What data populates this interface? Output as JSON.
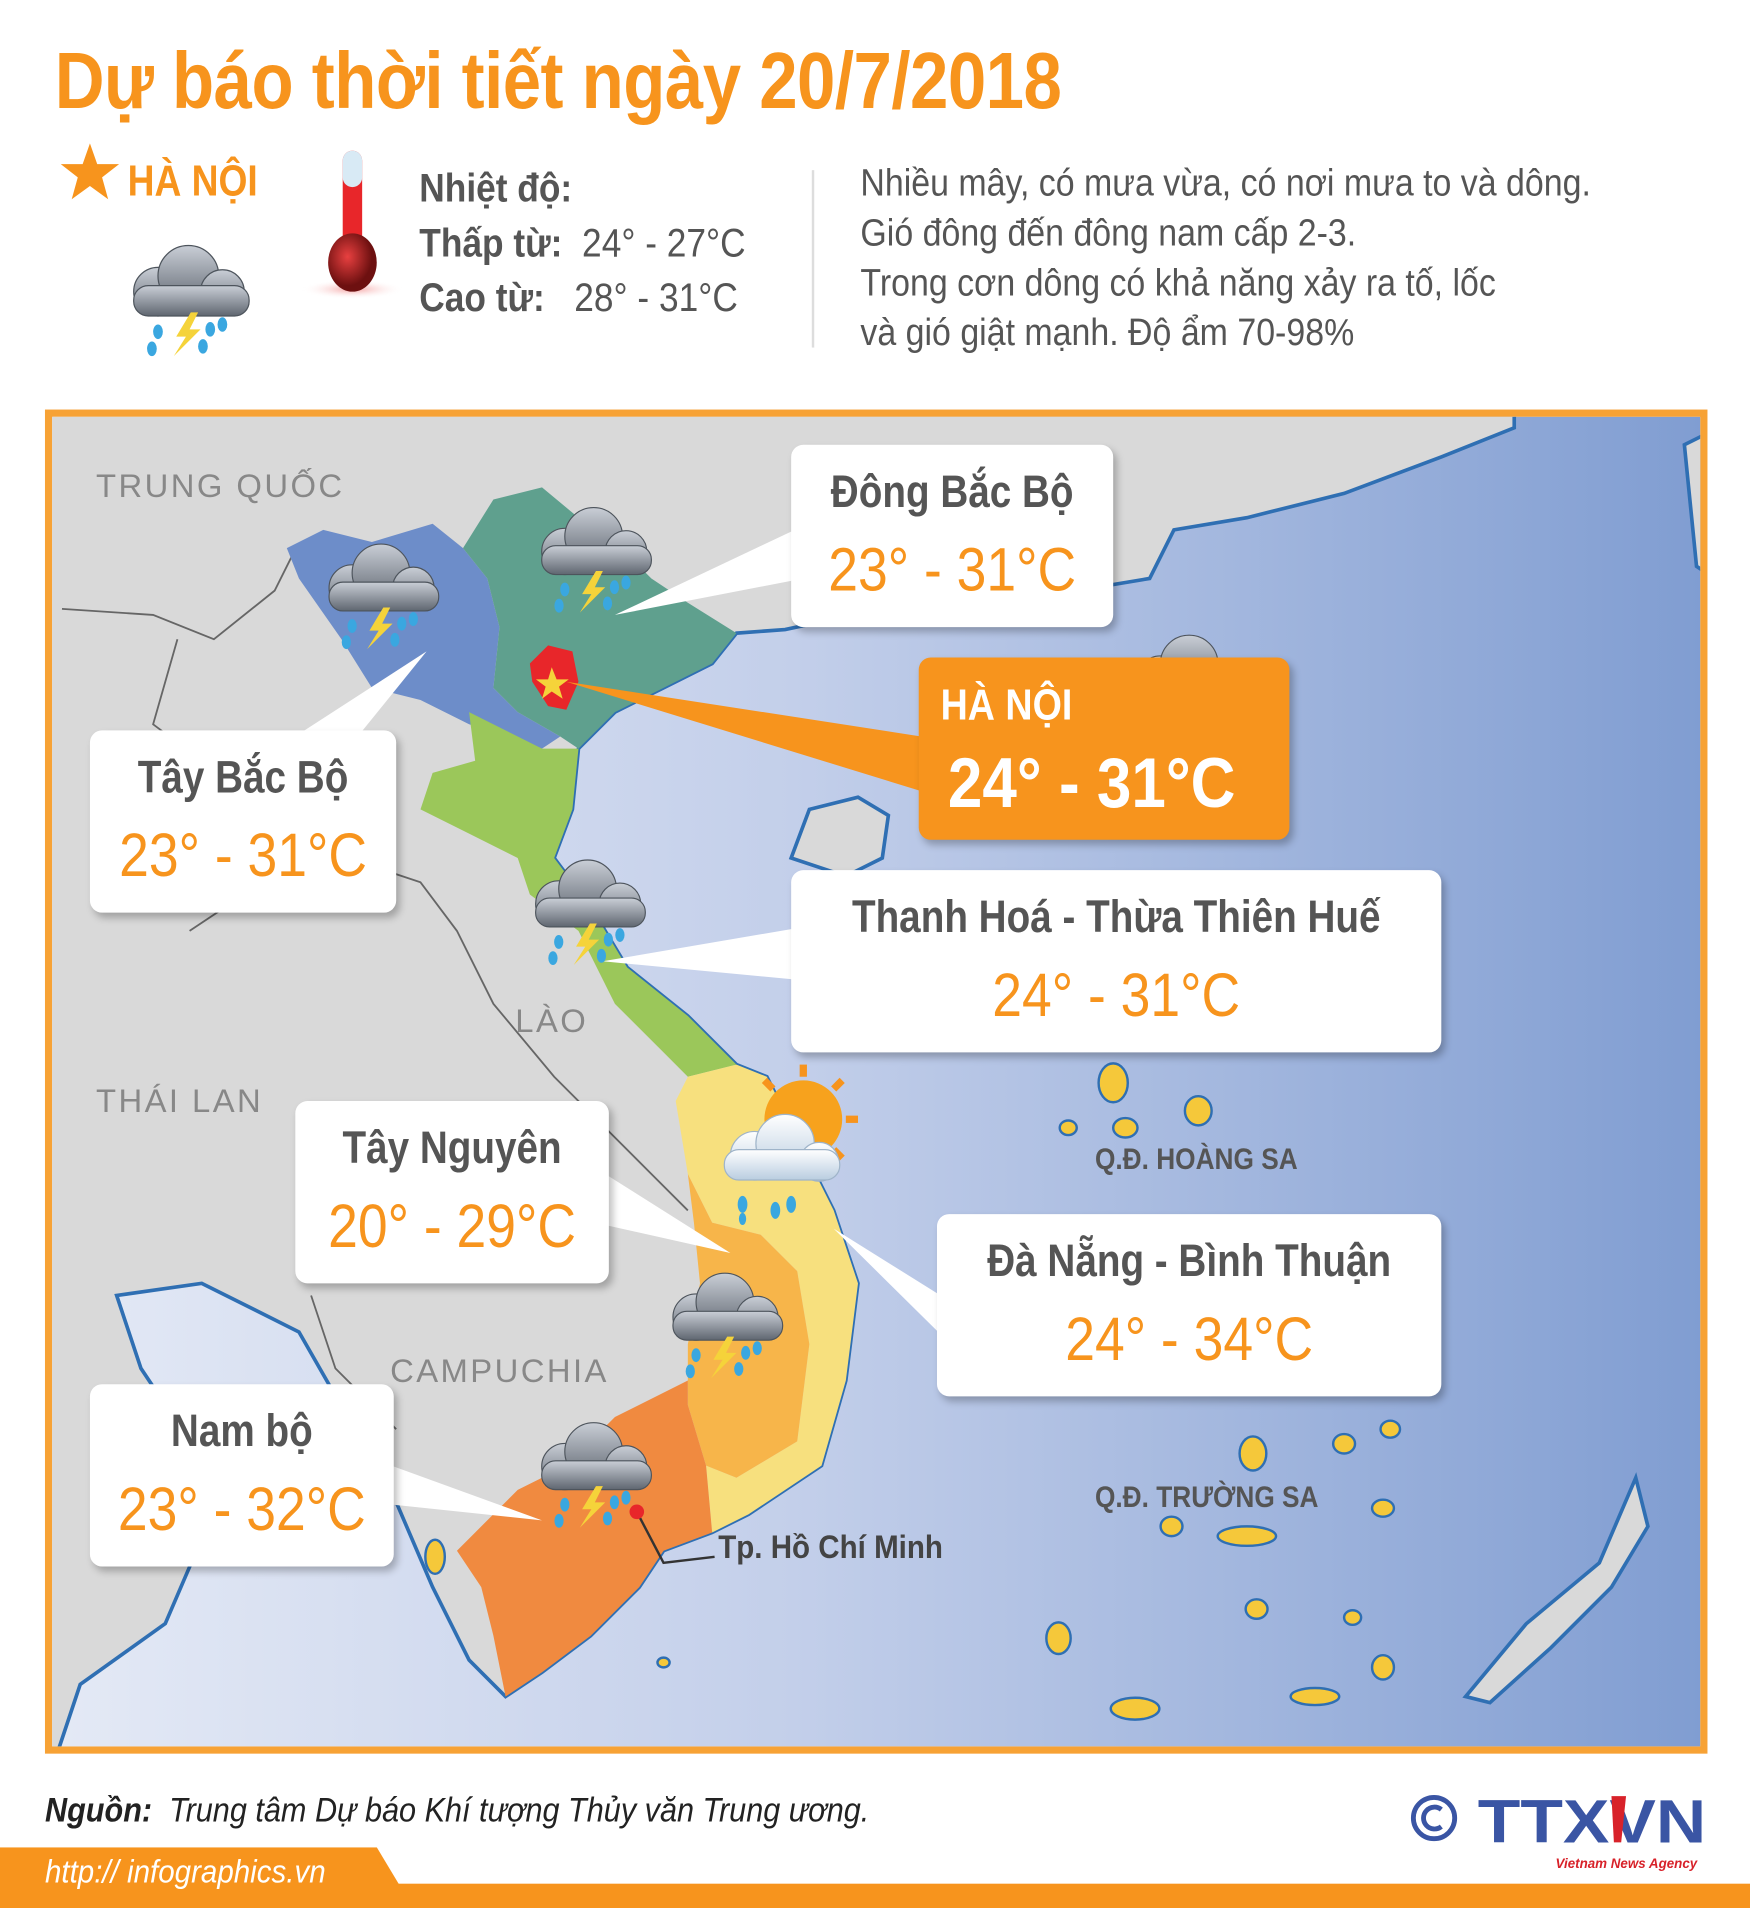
{
  "title": "Dự báo thời tiết ngày 20/7/2018",
  "hanoi_summary": {
    "city": "HÀ NỘI",
    "weather_icon": "thunderstorm-rain-icon",
    "temp_heading": "Nhiệt độ:",
    "low_label": "Thấp từ:",
    "low_value": "24° - 27°C",
    "high_label": "Cao từ:",
    "high_value": "28° - 31°C",
    "description": [
      "Nhiều mây, có mưa vừa, có nơi mưa to và dông.",
      "Gió đông đến đông nam cấp 2-3.",
      "Trong cơn dông có khả năng xảy ra tố, lốc",
      "và gió giật mạnh. Độ ẩm 70-98%"
    ]
  },
  "map": {
    "countries": [
      "TRUNG QUỐC",
      "LÀO",
      "THÁI LAN",
      "CAMPUCHIA"
    ],
    "islands": [
      "Q.Đ. HOÀNG SA",
      "Q.Đ. TRƯỜNG SA"
    ],
    "city_marker": "Tp. Hồ Chí Minh",
    "regions": [
      {
        "name": "Đông Bắc Bộ",
        "temp": "23° - 31°C",
        "color": "#5fa08e",
        "icon": "thunderstorm-rain-icon"
      },
      {
        "name": "HÀ NỘI",
        "temp": "24° - 31°C",
        "color": "#e8262a",
        "icon": "thunderstorm-rain-icon"
      },
      {
        "name": "Tây Bắc Bộ",
        "temp": "23° - 31°C",
        "color": "#6d8dc9",
        "icon": "thunderstorm-rain-icon"
      },
      {
        "name": "Thanh Hoá - Thừa Thiên Huế",
        "temp": "24° - 31°C",
        "color": "#9bc75a",
        "icon": "thunderstorm-rain-icon"
      },
      {
        "name": "Tây Nguyên",
        "temp": "20° - 29°C",
        "color": "#f7b54a",
        "icon": "thunderstorm-rain-icon"
      },
      {
        "name": "Đà Nẵng - Bình Thuận",
        "temp": "24° - 34°C",
        "color": "#f7e07e",
        "icon": "sun-cloud-rain-icon"
      },
      {
        "name": "Nam bộ",
        "temp": "23° - 32°C",
        "color": "#f08a40",
        "icon": "thunderstorm-rain-icon"
      }
    ]
  },
  "footer": {
    "source_label": "Nguồn:",
    "source_text": "Trung tâm Dự báo Khí tượng Thủy văn Trung ương.",
    "url": "http:// infographics.vn",
    "logo_text": "TTXVN",
    "logo_sub": "Vietnam News Agency"
  },
  "colors": {
    "accent": "#f7941d",
    "frame": "#f7a235",
    "text": "#555555",
    "logo": "#3a55a4"
  }
}
